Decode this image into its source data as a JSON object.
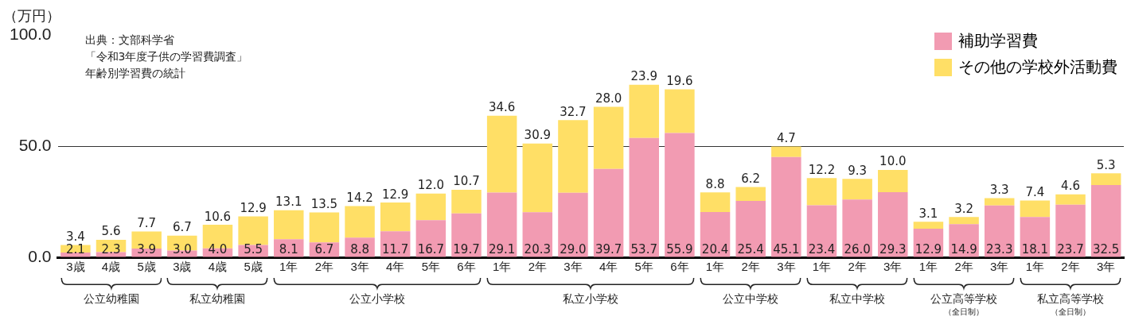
{
  "chart_data": {
    "type": "bar",
    "stacked": true,
    "ylabel": "（万円）",
    "categories": [
      "3歳",
      "4歳",
      "5歳",
      "3歳",
      "4歳",
      "5歳",
      "1年",
      "2年",
      "3年",
      "4年",
      "5年",
      "6年",
      "1年",
      "2年",
      "3年",
      "4年",
      "5年",
      "6年",
      "1年",
      "2年",
      "3年",
      "1年",
      "2年",
      "3年",
      "1年",
      "2年",
      "3年",
      "1年",
      "2年",
      "3年"
    ],
    "series": [
      {
        "name": "補助学習費",
        "color": "#f29bb2",
        "values": [
          2.1,
          2.3,
          3.9,
          3.0,
          4.0,
          5.5,
          8.1,
          6.7,
          8.8,
          11.7,
          16.7,
          19.7,
          29.1,
          20.3,
          29.0,
          39.7,
          53.7,
          55.9,
          20.4,
          25.4,
          45.1,
          23.4,
          26.0,
          29.3,
          12.9,
          14.9,
          23.3,
          18.1,
          23.7,
          32.5
        ],
        "value_labels": [
          "2.1",
          "2.3",
          "3.9",
          "3.0",
          "4.0",
          "5.5",
          "8.1",
          "6.7",
          "8.8",
          "11.7",
          "16.7",
          "19.7",
          "29.1",
          "20.3",
          "29.0",
          "39.7",
          "53.7",
          "55.9",
          "20.4",
          "25.4",
          "45.1",
          "23.4",
          "26.0",
          "29.3",
          "12.9",
          "14.9",
          "23.3",
          "18.1",
          "23.7",
          "32.5"
        ]
      },
      {
        "name": "その他の学校外活動費",
        "color": "#ffdf66",
        "values": [
          3.4,
          5.6,
          7.7,
          6.7,
          10.6,
          12.9,
          13.1,
          13.5,
          14.2,
          12.9,
          12.0,
          10.7,
          34.6,
          30.9,
          32.7,
          28.0,
          23.9,
          19.6,
          8.8,
          6.2,
          4.7,
          12.2,
          9.3,
          10.0,
          3.1,
          3.2,
          3.3,
          7.4,
          4.6,
          5.3
        ],
        "value_labels": [
          "3.4",
          "5.6",
          "7.7",
          "6.7",
          "10.6",
          "12.9",
          "13.1",
          "13.5",
          "14.2",
          "12.9",
          "12.0",
          "10.7",
          "34.6",
          "30.9",
          "32.7",
          "28.0",
          "23.9",
          "19.6",
          "8.8",
          "6.2",
          "4.7",
          "12.2",
          "9.3",
          "10.0",
          "3.1",
          "3.2",
          "3.3",
          "7.4",
          "4.6",
          "5.3"
        ]
      }
    ],
    "ylim": [
      0,
      100
    ],
    "yticks": [
      {
        "value": 0,
        "label": "0.0"
      },
      {
        "value": 50,
        "label": "50.0"
      },
      {
        "value": 100,
        "label": "100.0"
      }
    ],
    "grid": "y",
    "legend": "top right",
    "annotations": [
      "出典：文部科学省",
      "「令和3年度子供の学習費調査」",
      "年齢別学習費の統計",
      "公立幼稚園",
      "私立幼稚園",
      "公立小学校",
      "私立小学校",
      "公立中学校",
      "私立中学校",
      "公立高等学校",
      "（全日制）",
      "私立高等学校",
      "（全日制）"
    ]
  }
}
